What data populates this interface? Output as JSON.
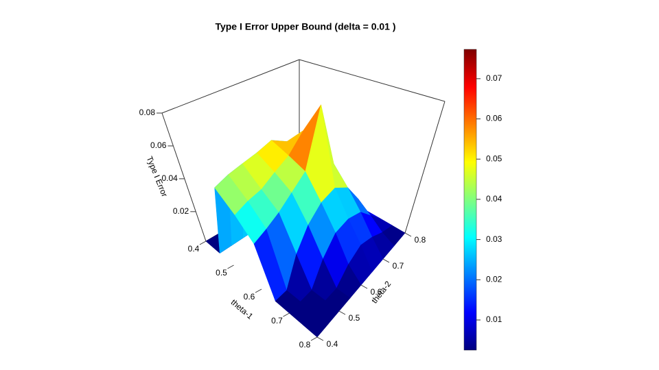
{
  "chart_data": {
    "type": "surface",
    "title": "Type I Error Upper Bound (delta =  0.01 )",
    "x_label": "theta-1",
    "y_label": "theta-2",
    "z_label": "Type I Error",
    "x": [
      0.4,
      0.45,
      0.5,
      0.55,
      0.6,
      0.65,
      0.7,
      0.75,
      0.8
    ],
    "y": [
      0.4,
      0.45,
      0.5,
      0.55,
      0.6,
      0.65,
      0.7,
      0.75,
      0.8
    ],
    "z": [
      [
        0.002,
        0.002,
        0.002,
        0.002,
        0.002,
        0.002,
        0.002,
        0.002,
        0.002
      ],
      [
        0.002,
        0.002,
        0.002,
        0.002,
        0.002,
        0.002,
        0.002,
        0.002,
        0.002
      ],
      [
        0.045,
        0.048,
        0.05,
        0.052,
        0.055,
        0.05,
        0.03,
        0.015,
        0.004
      ],
      [
        0.035,
        0.038,
        0.04,
        0.045,
        0.05,
        0.06,
        0.035,
        0.015,
        0.004
      ],
      [
        0.025,
        0.028,
        0.032,
        0.038,
        0.045,
        0.078,
        0.04,
        0.02,
        0.005
      ],
      [
        0.002,
        0.002,
        0.015,
        0.025,
        0.032,
        0.035,
        0.03,
        0.018,
        0.005
      ],
      [
        0.002,
        0.002,
        0.002,
        0.012,
        0.02,
        0.022,
        0.02,
        0.012,
        0.004
      ],
      [
        0.002,
        0.002,
        0.002,
        0.002,
        0.008,
        0.012,
        0.01,
        0.006,
        0.003
      ],
      [
        0.002,
        0.002,
        0.002,
        0.002,
        0.002,
        0.002,
        0.002,
        0.002,
        0.002
      ]
    ],
    "xlim": [
      0.4,
      0.8
    ],
    "ylim": [
      0.4,
      0.8
    ],
    "zlim": [
      0.002,
      0.08
    ],
    "xticks": [
      0.4,
      0.5,
      0.6,
      0.7,
      0.8
    ],
    "yticks": [
      0.4,
      0.5,
      0.6,
      0.7,
      0.8
    ],
    "zticks": [
      0.02,
      0.04,
      0.06,
      0.08
    ],
    "colorbar": {
      "lim": [
        0.0025,
        0.0773
      ],
      "ticks": [
        0.01,
        0.02,
        0.03,
        0.04,
        0.05,
        0.06,
        0.07
      ]
    }
  }
}
